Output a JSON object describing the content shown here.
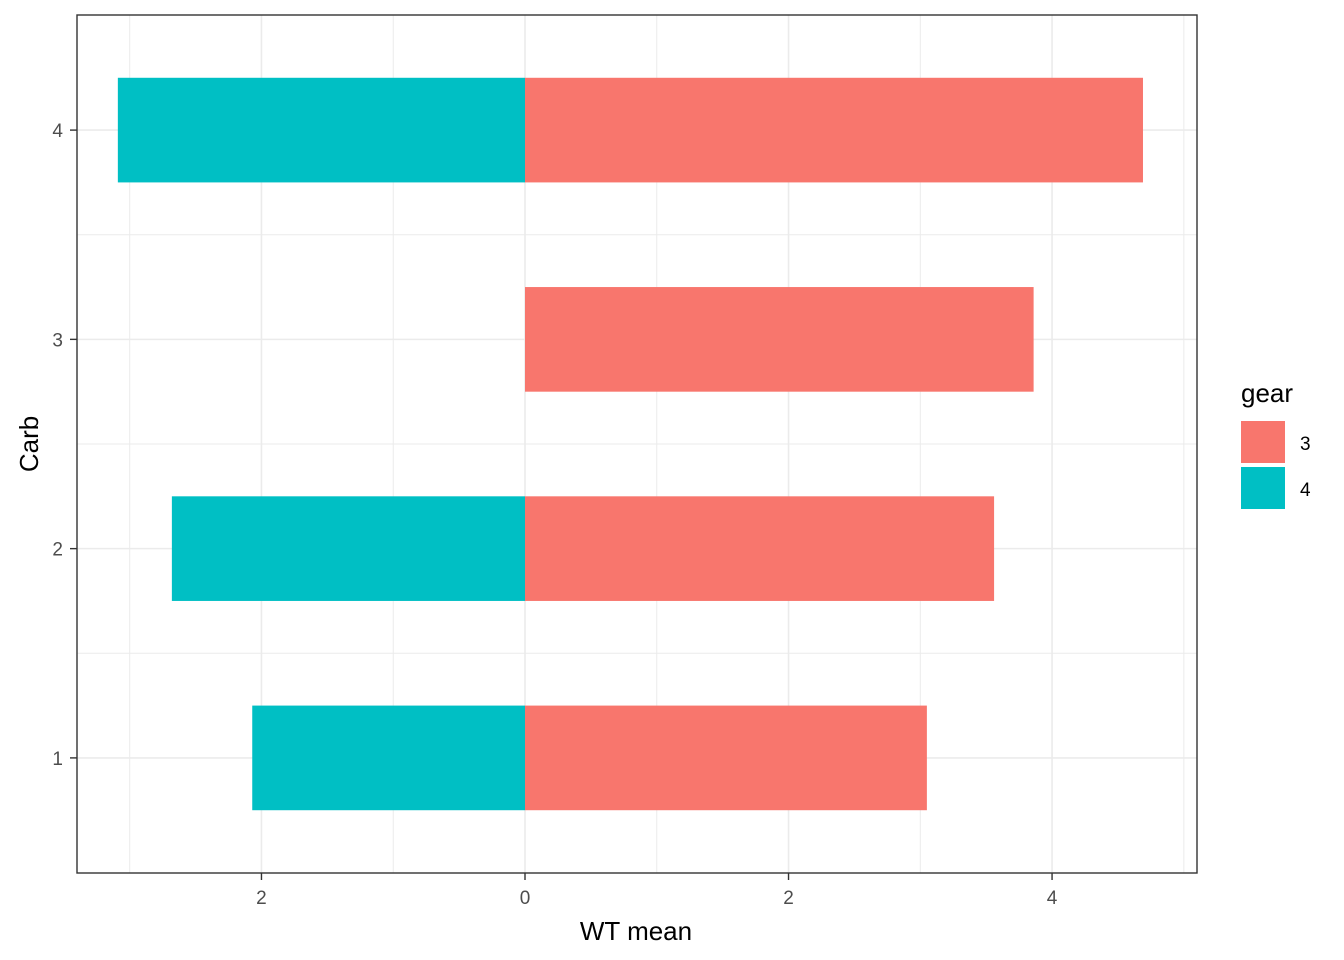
{
  "chart_data": {
    "type": "bar",
    "orientation": "horizontal",
    "diverging": true,
    "categories": [
      "1",
      "2",
      "3",
      "4"
    ],
    "series": [
      {
        "name": "3",
        "values": [
          3.05,
          3.56,
          3.86,
          4.69
        ],
        "direction": "right"
      },
      {
        "name": "4",
        "values": [
          2.07,
          2.68,
          null,
          3.09
        ],
        "direction": "left"
      }
    ],
    "xlabel": "WT mean",
    "ylabel": "Carb",
    "xlim": [
      -3.4,
      5.1
    ],
    "ylim": [
      0.45,
      4.55
    ],
    "xticks": [
      -2,
      0,
      2,
      4
    ],
    "xtick_labels": [
      "2",
      "0",
      "2",
      "4"
    ],
    "yticks": [
      1,
      2,
      3,
      4
    ],
    "ytick_labels": [
      "1",
      "2",
      "3",
      "4"
    ],
    "legend": {
      "title": "gear",
      "labels": [
        "3",
        "4"
      ],
      "position": "right"
    },
    "grid": true,
    "colors": {
      "3": "#F8766D",
      "4": "#00BFC4"
    }
  }
}
